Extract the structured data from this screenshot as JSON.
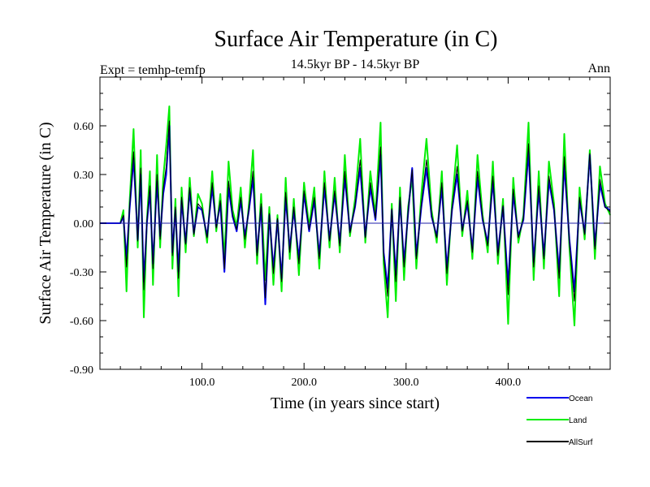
{
  "chart_data": {
    "type": "line",
    "title": "Surface Air Temperature (in C)",
    "subtitle": "14.5kyr BP - 14.5kyr BP",
    "left_label": "Expt = temhp-temfp",
    "right_label": "Ann",
    "xlabel": "Time (in years since start)",
    "ylabel": "Surface Air Temperature (in C)",
    "xlim": [
      0,
      500
    ],
    "ylim": [
      -0.9,
      0.9
    ],
    "x_ticks": [
      100,
      200,
      300,
      400
    ],
    "x_tick_labels": [
      "100.0",
      "200.0",
      "300.0",
      "400.0"
    ],
    "y_ticks": [
      -0.9,
      -0.6,
      -0.3,
      0.0,
      0.3,
      0.6
    ],
    "y_tick_labels": [
      "-0.90",
      "-0.60",
      "-0.30",
      "0.00",
      "0.30",
      "0.60"
    ],
    "zero_line": true,
    "legend_position": "bottom-right, below plot",
    "series": [
      {
        "name": "Land",
        "color": "#00ee00",
        "x": [
          0,
          20,
          23,
          26,
          29,
          33,
          37,
          40,
          43,
          46,
          49,
          52,
          56,
          59,
          62,
          65,
          68,
          71,
          74,
          77,
          80,
          84,
          88,
          92,
          96,
          100,
          105,
          110,
          114,
          118,
          122,
          126,
          130,
          134,
          138,
          142,
          146,
          150,
          154,
          158,
          162,
          166,
          170,
          174,
          178,
          182,
          186,
          190,
          195,
          200,
          205,
          210,
          215,
          220,
          225,
          230,
          235,
          240,
          245,
          250,
          255,
          260,
          265,
          270,
          275,
          278,
          282,
          286,
          290,
          294,
          298,
          302,
          306,
          310,
          315,
          320,
          325,
          330,
          335,
          340,
          345,
          350,
          355,
          360,
          365,
          370,
          375,
          380,
          385,
          390,
          395,
          400,
          405,
          410,
          415,
          420,
          425,
          430,
          435,
          440,
          445,
          450,
          455,
          460,
          465,
          470,
          475,
          480,
          485,
          490,
          495,
          500
        ],
        "y": [
          0.0,
          0.0,
          0.08,
          -0.42,
          0.12,
          0.58,
          -0.15,
          0.45,
          -0.58,
          0.02,
          0.32,
          -0.38,
          0.42,
          -0.15,
          0.28,
          0.48,
          0.72,
          -0.28,
          0.15,
          -0.45,
          0.22,
          -0.18,
          0.28,
          -0.08,
          0.18,
          0.12,
          -0.12,
          0.32,
          -0.05,
          0.18,
          -0.22,
          0.38,
          0.08,
          -0.02,
          0.22,
          -0.15,
          0.12,
          0.45,
          -0.25,
          0.18,
          -0.35,
          0.1,
          -0.38,
          0.05,
          -0.42,
          0.28,
          -0.22,
          0.15,
          -0.32,
          0.25,
          -0.02,
          0.22,
          -0.28,
          0.32,
          -0.15,
          0.28,
          -0.18,
          0.42,
          -0.08,
          0.15,
          0.52,
          -0.12,
          0.32,
          0.05,
          0.62,
          -0.25,
          -0.58,
          0.12,
          -0.48,
          0.22,
          -0.35,
          0.1,
          0.28,
          -0.28,
          0.18,
          0.52,
          0.08,
          -0.12,
          0.32,
          -0.38,
          0.12,
          0.48,
          -0.08,
          0.2,
          -0.22,
          0.42,
          0.05,
          -0.18,
          0.38,
          -0.25,
          0.15,
          -0.62,
          0.28,
          -0.12,
          0.05,
          0.62,
          -0.35,
          0.32,
          -0.28,
          0.38,
          0.12,
          -0.45,
          0.55,
          -0.15,
          -0.63,
          0.22,
          -0.1,
          0.45,
          -0.22,
          0.35,
          0.12,
          0.05
        ]
      },
      {
        "name": "Ocean",
        "color": "#0000ee",
        "x": [
          0,
          20,
          23,
          26,
          29,
          33,
          37,
          40,
          43,
          46,
          49,
          52,
          56,
          59,
          62,
          65,
          68,
          71,
          74,
          77,
          80,
          84,
          88,
          92,
          96,
          100,
          105,
          110,
          114,
          118,
          122,
          126,
          130,
          134,
          138,
          142,
          146,
          150,
          154,
          158,
          162,
          166,
          170,
          174,
          178,
          182,
          186,
          190,
          195,
          200,
          205,
          210,
          215,
          220,
          225,
          230,
          235,
          240,
          245,
          250,
          255,
          260,
          265,
          270,
          275,
          278,
          282,
          286,
          290,
          294,
          298,
          302,
          306,
          310,
          315,
          320,
          325,
          330,
          335,
          340,
          345,
          350,
          355,
          360,
          365,
          370,
          375,
          380,
          385,
          390,
          395,
          400,
          405,
          410,
          415,
          420,
          425,
          430,
          435,
          440,
          445,
          450,
          455,
          460,
          465,
          470,
          475,
          480,
          485,
          490,
          495,
          500
        ],
        "y": [
          0.0,
          0.0,
          0.04,
          -0.22,
          0.08,
          0.4,
          -0.1,
          0.3,
          -0.36,
          0.0,
          0.2,
          -0.25,
          0.26,
          -0.08,
          0.18,
          0.3,
          0.6,
          -0.18,
          0.08,
          -0.3,
          0.14,
          -0.12,
          0.2,
          -0.06,
          0.1,
          0.08,
          -0.08,
          0.22,
          -0.02,
          0.12,
          -0.3,
          0.22,
          0.04,
          -0.05,
          0.14,
          -0.08,
          0.08,
          0.28,
          -0.18,
          0.1,
          -0.5,
          0.05,
          -0.28,
          0.02,
          -0.34,
          0.16,
          -0.16,
          0.08,
          -0.22,
          0.18,
          -0.05,
          0.14,
          -0.2,
          0.22,
          -0.1,
          0.18,
          -0.12,
          0.28,
          -0.05,
          0.1,
          0.34,
          -0.08,
          0.22,
          0.02,
          0.42,
          -0.18,
          -0.4,
          0.08,
          -0.32,
          0.14,
          -0.24,
          0.06,
          0.34,
          -0.2,
          0.1,
          0.34,
          0.04,
          -0.08,
          0.22,
          -0.28,
          0.08,
          0.3,
          -0.04,
          0.12,
          -0.16,
          0.28,
          0.02,
          -0.12,
          0.26,
          -0.18,
          0.1,
          -0.38,
          0.18,
          -0.08,
          0.02,
          0.44,
          -0.24,
          0.2,
          -0.2,
          0.26,
          0.08,
          -0.3,
          0.36,
          -0.1,
          -0.42,
          0.14,
          -0.06,
          0.42,
          -0.14,
          0.24,
          0.1,
          0.08
        ]
      },
      {
        "name": "AllSurf",
        "color": "#000000",
        "x": [
          0,
          20,
          23,
          26,
          29,
          33,
          37,
          40,
          43,
          46,
          49,
          52,
          56,
          59,
          62,
          65,
          68,
          71,
          74,
          77,
          80,
          84,
          88,
          92,
          96,
          100,
          105,
          110,
          114,
          118,
          122,
          126,
          130,
          134,
          138,
          142,
          146,
          150,
          154,
          158,
          162,
          166,
          170,
          174,
          178,
          182,
          186,
          190,
          195,
          200,
          205,
          210,
          215,
          220,
          225,
          230,
          235,
          240,
          245,
          250,
          255,
          260,
          265,
          270,
          275,
          278,
          282,
          286,
          290,
          294,
          298,
          302,
          306,
          310,
          315,
          320,
          325,
          330,
          335,
          340,
          345,
          350,
          355,
          360,
          365,
          370,
          375,
          380,
          385,
          390,
          395,
          400,
          405,
          410,
          415,
          420,
          425,
          430,
          435,
          440,
          445,
          450,
          455,
          460,
          465,
          470,
          475,
          480,
          485,
          490,
          495,
          500
        ],
        "y": [
          0.0,
          0.0,
          0.05,
          -0.27,
          0.09,
          0.44,
          -0.11,
          0.34,
          -0.41,
          0.01,
          0.23,
          -0.28,
          0.3,
          -0.1,
          0.21,
          0.35,
          0.63,
          -0.2,
          0.1,
          -0.34,
          0.16,
          -0.13,
          0.22,
          -0.07,
          0.12,
          0.09,
          -0.09,
          0.25,
          -0.03,
          0.14,
          -0.28,
          0.26,
          0.05,
          -0.04,
          0.16,
          -0.1,
          0.09,
          0.32,
          -0.2,
          0.12,
          -0.46,
          0.06,
          -0.31,
          0.03,
          -0.36,
          0.19,
          -0.18,
          0.1,
          -0.25,
          0.2,
          -0.04,
          0.16,
          -0.22,
          0.25,
          -0.11,
          0.2,
          -0.14,
          0.32,
          -0.06,
          0.11,
          0.39,
          -0.09,
          0.25,
          0.03,
          0.47,
          -0.2,
          -0.45,
          0.09,
          -0.36,
          0.16,
          -0.27,
          0.07,
          0.33,
          -0.22,
          0.12,
          0.39,
          0.05,
          -0.09,
          0.25,
          -0.31,
          0.09,
          0.35,
          -0.05,
          0.14,
          -0.18,
          0.32,
          0.03,
          -0.14,
          0.29,
          -0.2,
          0.11,
          -0.44,
          0.21,
          -0.09,
          0.03,
          0.49,
          -0.27,
          0.23,
          -0.22,
          0.29,
          0.09,
          -0.34,
          0.41,
          -0.11,
          -0.48,
          0.16,
          -0.07,
          0.43,
          -0.16,
          0.27,
          0.1,
          0.07
        ]
      }
    ]
  }
}
